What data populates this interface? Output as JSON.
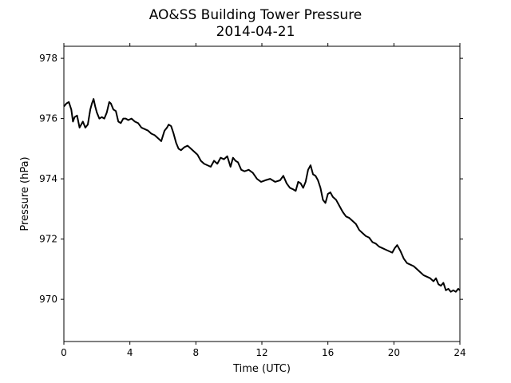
{
  "chart_data": {
    "type": "line",
    "title": "AO&SS Building Tower Pressure",
    "subtitle": "2014-04-21",
    "xlabel": "Time (UTC)",
    "ylabel": "Pressure (hPa)",
    "xlim": [
      0,
      24
    ],
    "ylim": [
      968.6,
      978.4
    ],
    "xticks": [
      0,
      4,
      8,
      12,
      16,
      20,
      24
    ],
    "yticks": [
      970,
      972,
      974,
      976,
      978
    ],
    "grid": false,
    "legend": "none",
    "line_color": "#000000",
    "series": [
      {
        "x": [
          0.0,
          0.15,
          0.3,
          0.45,
          0.55,
          0.65,
          0.8,
          0.95,
          1.05,
          1.15,
          1.3,
          1.45,
          1.6,
          1.7,
          1.8,
          1.9,
          2.0,
          2.15,
          2.3,
          2.45,
          2.6,
          2.75,
          2.85,
          3.0,
          3.15,
          3.3,
          3.45,
          3.6,
          3.75,
          3.9,
          4.1,
          4.3,
          4.5,
          4.7,
          4.9,
          5.1,
          5.3,
          5.5,
          5.7,
          5.9,
          6.1,
          6.25,
          6.35,
          6.5,
          6.65,
          6.8,
          6.95,
          7.1,
          7.3,
          7.5,
          7.7,
          7.9,
          8.1,
          8.3,
          8.5,
          8.7,
          8.9,
          9.1,
          9.3,
          9.5,
          9.7,
          9.9,
          10.1,
          10.25,
          10.4,
          10.55,
          10.75,
          10.95,
          11.2,
          11.45,
          11.7,
          11.95,
          12.2,
          12.5,
          12.8,
          13.1,
          13.3,
          13.5,
          13.7,
          13.9,
          14.05,
          14.2,
          14.35,
          14.5,
          14.65,
          14.8,
          14.95,
          15.1,
          15.25,
          15.4,
          15.55,
          15.7,
          15.85,
          16.0,
          16.15,
          16.3,
          16.5,
          16.7,
          16.9,
          17.1,
          17.3,
          17.5,
          17.7,
          17.9,
          18.1,
          18.3,
          18.5,
          18.7,
          18.9,
          19.1,
          19.3,
          19.5,
          19.7,
          19.9,
          20.05,
          20.2,
          20.4,
          20.6,
          20.8,
          21.0,
          21.2,
          21.4,
          21.6,
          21.8,
          22.0,
          22.2,
          22.4,
          22.55,
          22.7,
          22.85,
          23.0,
          23.15,
          23.3,
          23.45,
          23.6,
          23.75,
          23.9,
          24.0
        ],
        "y": [
          976.4,
          976.5,
          976.55,
          976.3,
          975.9,
          976.05,
          976.1,
          975.7,
          975.8,
          975.9,
          975.7,
          975.8,
          976.3,
          976.5,
          976.65,
          976.4,
          976.2,
          976.0,
          976.05,
          976.0,
          976.2,
          976.55,
          976.5,
          976.3,
          976.25,
          975.9,
          975.85,
          976.0,
          976.0,
          975.95,
          976.0,
          975.9,
          975.85,
          975.7,
          975.65,
          975.6,
          975.5,
          975.45,
          975.35,
          975.25,
          975.6,
          975.7,
          975.8,
          975.75,
          975.5,
          975.2,
          975.0,
          974.95,
          975.05,
          975.1,
          975.0,
          974.9,
          974.8,
          974.6,
          974.5,
          974.45,
          974.4,
          974.6,
          974.5,
          974.7,
          974.65,
          974.75,
          974.4,
          974.7,
          974.6,
          974.55,
          974.3,
          974.25,
          974.3,
          974.2,
          974.0,
          973.9,
          973.95,
          974.0,
          973.9,
          973.95,
          974.1,
          973.85,
          973.7,
          973.65,
          973.6,
          973.9,
          973.85,
          973.7,
          973.9,
          974.3,
          974.45,
          974.15,
          974.1,
          973.95,
          973.7,
          973.3,
          973.2,
          973.5,
          973.55,
          973.4,
          973.3,
          973.1,
          972.9,
          972.75,
          972.7,
          972.6,
          972.5,
          972.3,
          972.2,
          972.1,
          972.05,
          971.9,
          971.85,
          971.75,
          971.7,
          971.65,
          971.6,
          971.55,
          971.7,
          971.8,
          971.6,
          971.35,
          971.2,
          971.15,
          971.1,
          971.0,
          970.9,
          970.8,
          970.75,
          970.7,
          970.6,
          970.7,
          970.5,
          970.45,
          970.55,
          970.3,
          970.35,
          970.25,
          970.3,
          970.25,
          970.35,
          970.3
        ]
      }
    ]
  }
}
